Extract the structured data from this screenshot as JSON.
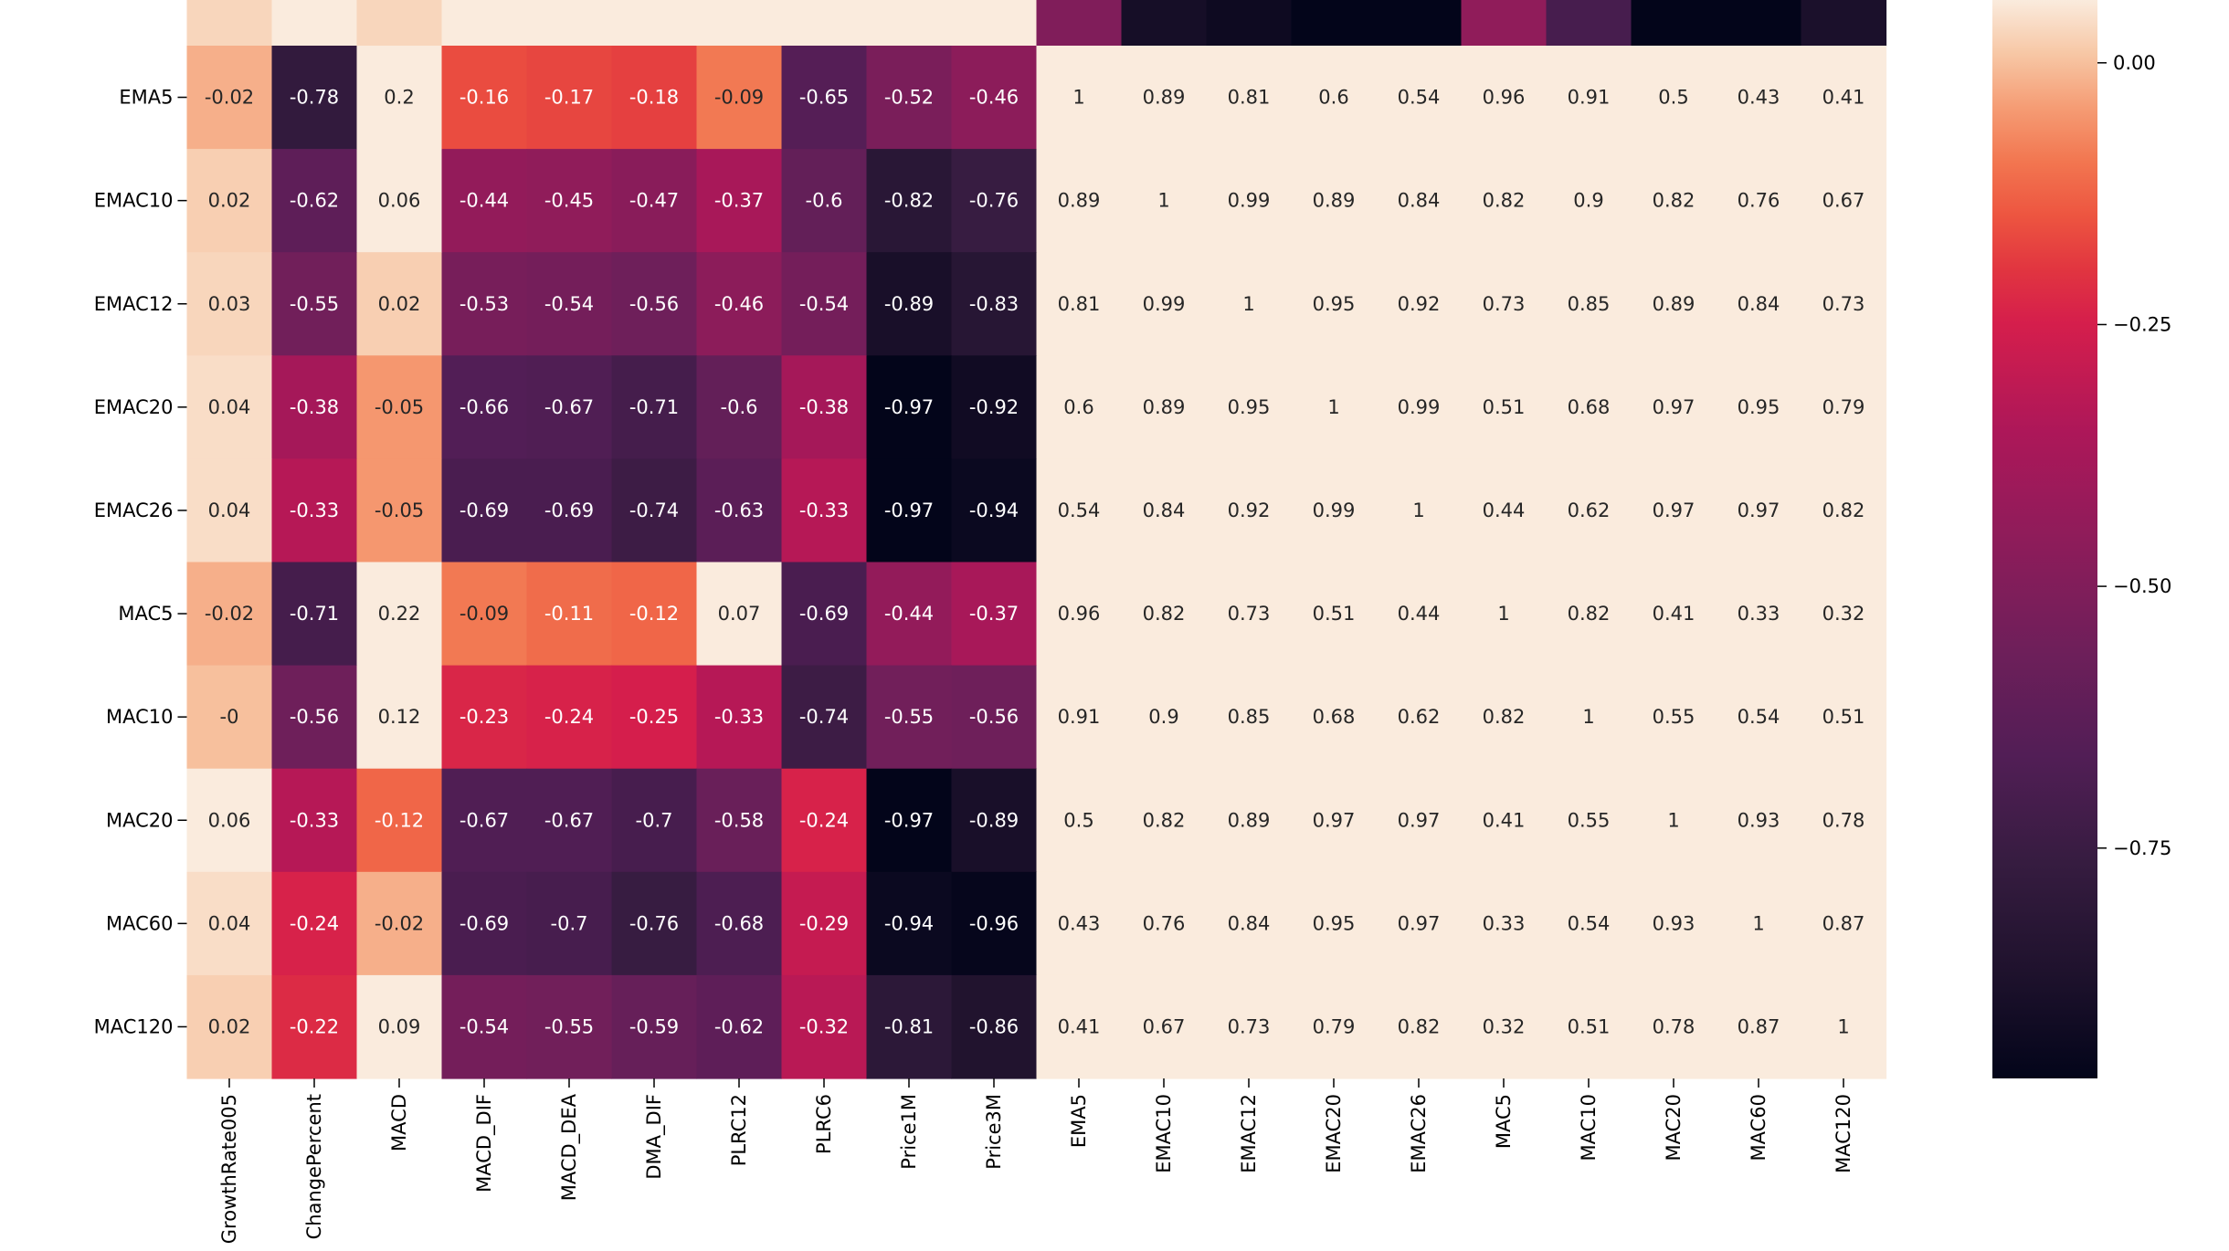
{
  "chart_data": {
    "type": "heatmap",
    "title": "",
    "xlabel": "",
    "ylabel": "",
    "colormap": "rocket",
    "vmin": -0.97,
    "vmax": 0.06,
    "x_categories": [
      "GrowthRate005",
      "ChangePercent",
      "MACD",
      "MACD_DIF",
      "MACD_DEA",
      "DMA_DIF",
      "PLRC12",
      "PLRC6",
      "Price1M",
      "Price3M",
      "EMA5",
      "EMAC10",
      "EMAC12",
      "EMAC20",
      "EMAC26",
      "MAC5",
      "MAC10",
      "MAC20",
      "MAC60",
      "MAC120"
    ],
    "y_categories": [
      "EMA5",
      "EMAC10",
      "EMAC12",
      "EMAC20",
      "EMAC26",
      "MAC5",
      "MAC10",
      "MAC20",
      "MAC60",
      "MAC120"
    ],
    "partial_top_row_values": [
      0.03,
      0.12,
      0.03,
      0.38,
      0.38,
      0.37,
      0.3,
      0.12,
      0.55,
      0.62,
      -0.5,
      -0.9,
      -0.93,
      -0.97,
      -0.98,
      -0.45,
      -0.7,
      -0.97,
      -0.97,
      -0.88
    ],
    "values": [
      [
        "-0.02",
        "-0.78",
        "0.2",
        "-0.16",
        "-0.17",
        "-0.18",
        "-0.09",
        "-0.65",
        "-0.52",
        "-0.46",
        "1",
        "0.89",
        "0.81",
        "0.6",
        "0.54",
        "0.96",
        "0.91",
        "0.5",
        "0.43",
        "0.41"
      ],
      [
        "0.02",
        "-0.62",
        "0.06",
        "-0.44",
        "-0.45",
        "-0.47",
        "-0.37",
        "-0.6",
        "-0.82",
        "-0.76",
        "0.89",
        "1",
        "0.99",
        "0.89",
        "0.84",
        "0.82",
        "0.9",
        "0.82",
        "0.76",
        "0.67"
      ],
      [
        "0.03",
        "-0.55",
        "0.02",
        "-0.53",
        "-0.54",
        "-0.56",
        "-0.46",
        "-0.54",
        "-0.89",
        "-0.83",
        "0.81",
        "0.99",
        "1",
        "0.95",
        "0.92",
        "0.73",
        "0.85",
        "0.89",
        "0.84",
        "0.73"
      ],
      [
        "0.04",
        "-0.38",
        "-0.05",
        "-0.66",
        "-0.67",
        "-0.71",
        "-0.6",
        "-0.38",
        "-0.97",
        "-0.92",
        "0.6",
        "0.89",
        "0.95",
        "1",
        "0.99",
        "0.51",
        "0.68",
        "0.97",
        "0.95",
        "0.79"
      ],
      [
        "0.04",
        "-0.33",
        "-0.05",
        "-0.69",
        "-0.69",
        "-0.74",
        "-0.63",
        "-0.33",
        "-0.97",
        "-0.94",
        "0.54",
        "0.84",
        "0.92",
        "0.99",
        "1",
        "0.44",
        "0.62",
        "0.97",
        "0.97",
        "0.82"
      ],
      [
        "-0.02",
        "-0.71",
        "0.22",
        "-0.09",
        "-0.11",
        "-0.12",
        "0.07",
        "-0.69",
        "-0.44",
        "-0.37",
        "0.96",
        "0.82",
        "0.73",
        "0.51",
        "0.44",
        "1",
        "0.82",
        "0.41",
        "0.33",
        "0.32"
      ],
      [
        "-0",
        "-0.56",
        "0.12",
        "-0.23",
        "-0.24",
        "-0.25",
        "-0.33",
        "-0.74",
        "-0.55",
        "-0.56",
        "0.91",
        "0.9",
        "0.85",
        "0.68",
        "0.62",
        "0.82",
        "1",
        "0.55",
        "0.54",
        "0.51"
      ],
      [
        "0.06",
        "-0.33",
        "-0.12",
        "-0.67",
        "-0.67",
        "-0.7",
        "-0.58",
        "-0.24",
        "-0.97",
        "-0.89",
        "0.5",
        "0.82",
        "0.89",
        "0.97",
        "0.97",
        "0.41",
        "0.55",
        "1",
        "0.93",
        "0.78"
      ],
      [
        "0.04",
        "-0.24",
        "-0.02",
        "-0.69",
        "-0.7",
        "-0.76",
        "-0.68",
        "-0.29",
        "-0.94",
        "-0.96",
        "0.43",
        "0.76",
        "0.84",
        "0.95",
        "0.97",
        "0.33",
        "0.54",
        "0.93",
        "1",
        "0.87"
      ],
      [
        "0.02",
        "-0.22",
        "0.09",
        "-0.54",
        "-0.55",
        "-0.59",
        "-0.62",
        "-0.32",
        "-0.81",
        "-0.86",
        "0.41",
        "0.67",
        "0.73",
        "0.79",
        "0.82",
        "0.32",
        "0.51",
        "0.78",
        "0.87",
        "1"
      ]
    ],
    "colorbar": {
      "ticks": [
        0.0,
        -0.25,
        -0.5,
        -0.75
      ],
      "tick_labels": [
        "0.00",
        "−0.25",
        "−0.50",
        "−0.75"
      ]
    }
  }
}
